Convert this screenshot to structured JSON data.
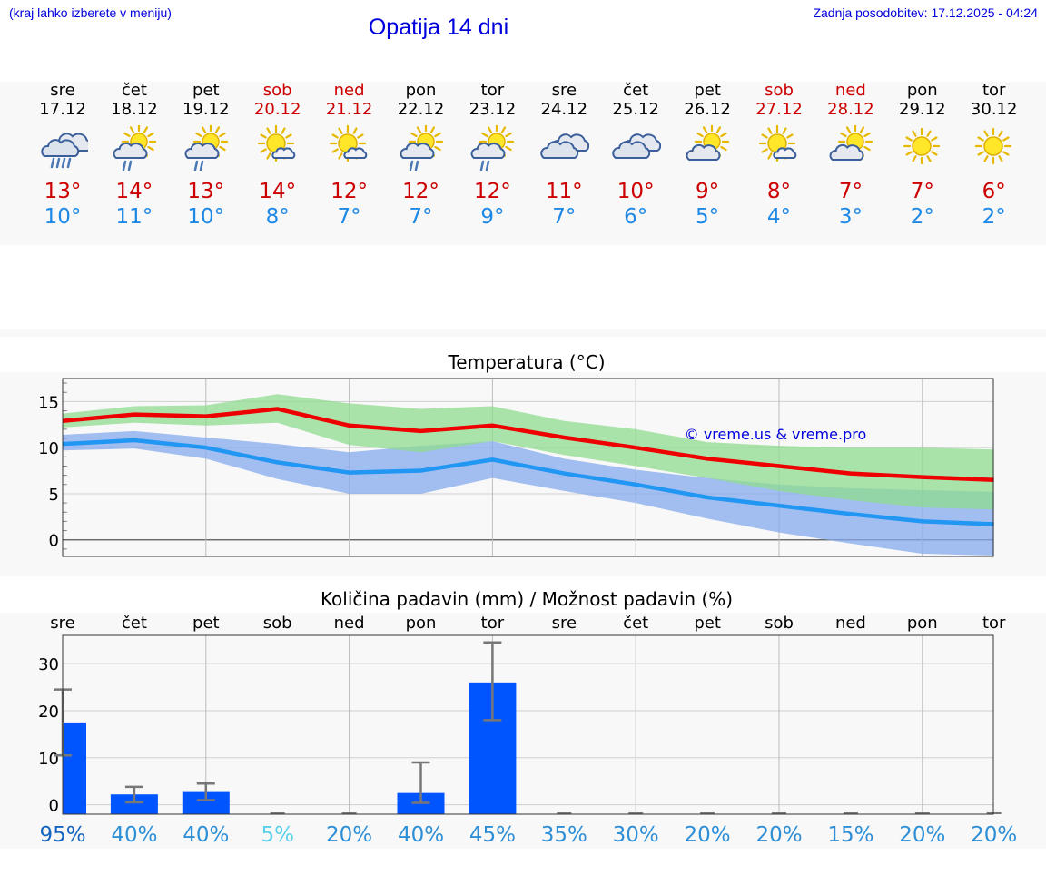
{
  "header": {
    "location_hint": "(kraj lahko izberete v meniju)",
    "title": "Opatija 14 dni",
    "updated": "Zadnja posodobitev: 17.12.2025 - 04:24"
  },
  "days": [
    {
      "name": "sre",
      "date": "17.12",
      "icon": "cloud-heavy-rain-icon",
      "max": "13°",
      "min": "10°",
      "weekend": false
    },
    {
      "name": "čet",
      "date": "18.12",
      "icon": "sun-cloud-rain-icon",
      "max": "14°",
      "min": "11°",
      "weekend": false
    },
    {
      "name": "pet",
      "date": "19.12",
      "icon": "sun-cloud-rain-icon",
      "max": "13°",
      "min": "10°",
      "weekend": false
    },
    {
      "name": "sob",
      "date": "20.12",
      "icon": "sun-small-cloud-icon",
      "max": "14°",
      "min": "8°",
      "weekend": true
    },
    {
      "name": "ned",
      "date": "21.12",
      "icon": "sun-small-cloud-icon",
      "max": "12°",
      "min": "7°",
      "weekend": true
    },
    {
      "name": "pon",
      "date": "22.12",
      "icon": "sun-cloud-rain-icon",
      "max": "12°",
      "min": "7°",
      "weekend": false
    },
    {
      "name": "tor",
      "date": "23.12",
      "icon": "sun-cloud-rain-icon",
      "max": "12°",
      "min": "9°",
      "weekend": false
    },
    {
      "name": "sre",
      "date": "24.12",
      "icon": "cloudy-icon",
      "max": "11°",
      "min": "7°",
      "weekend": false
    },
    {
      "name": "čet",
      "date": "25.12",
      "icon": "cloudy-icon",
      "max": "10°",
      "min": "6°",
      "weekend": false
    },
    {
      "name": "pet",
      "date": "26.12",
      "icon": "sun-cloud-icon",
      "max": "9°",
      "min": "5°",
      "weekend": false
    },
    {
      "name": "sob",
      "date": "27.12",
      "icon": "sun-small-cloud-icon",
      "max": "8°",
      "min": "4°",
      "weekend": true
    },
    {
      "name": "ned",
      "date": "28.12",
      "icon": "sun-cloud-icon",
      "max": "7°",
      "min": "3°",
      "weekend": true
    },
    {
      "name": "pon",
      "date": "29.12",
      "icon": "sun-icon",
      "max": "7°",
      "min": "2°",
      "weekend": false
    },
    {
      "name": "tor",
      "date": "30.12",
      "icon": "sun-icon",
      "max": "6°",
      "min": "2°",
      "weekend": false
    }
  ],
  "colors": {
    "max_line": "#ee0000",
    "min_line": "#2196f3",
    "max_band": "#8fdc8f",
    "min_band": "#86abee",
    "bar": "#0055ff",
    "error": "#777777"
  },
  "chart_data": [
    {
      "type": "line",
      "title": "Temperatura (°C)",
      "watermark": "© vreme.us & vreme.pro",
      "ylim": [
        -1.8,
        17.5
      ],
      "yticks": [
        0,
        5,
        10,
        15
      ],
      "series": [
        {
          "name": "max",
          "values": [
            12.9,
            13.6,
            13.4,
            14.2,
            12.4,
            11.8,
            12.4,
            11.1,
            10.0,
            8.8,
            8.0,
            7.2,
            6.8,
            6.5
          ],
          "band_low": [
            12.2,
            12.7,
            12.4,
            12.7,
            10.3,
            9.5,
            10.7,
            9.2,
            8.0,
            6.7,
            5.3,
            4.3,
            3.5,
            3.3
          ],
          "band_high": [
            13.7,
            14.5,
            14.6,
            15.8,
            14.8,
            14.2,
            14.5,
            12.9,
            12.0,
            10.6,
            10.2,
            10.0,
            10.0,
            9.8
          ]
        },
        {
          "name": "min",
          "values": [
            10.4,
            10.8,
            10.0,
            8.4,
            7.3,
            7.5,
            8.7,
            7.2,
            6.0,
            4.6,
            3.7,
            2.8,
            2.0,
            1.7
          ],
          "band_low": [
            9.7,
            9.9,
            8.8,
            6.6,
            5.0,
            5.0,
            6.7,
            5.3,
            4.0,
            2.3,
            0.8,
            -0.4,
            -1.5,
            -1.7
          ],
          "band_high": [
            11.4,
            11.8,
            11.1,
            10.4,
            9.5,
            10.2,
            10.7,
            8.8,
            7.6,
            6.7,
            6.0,
            5.6,
            5.4,
            5.2
          ]
        }
      ]
    },
    {
      "type": "bar",
      "title": "Količina padavin (mm) / Možnost padavin (%)",
      "ylim": [
        -2,
        36
      ],
      "yticks": [
        0,
        10,
        20,
        30
      ],
      "categories": [
        "sre",
        "čet",
        "pet",
        "sob",
        "ned",
        "pon",
        "tor",
        "sre",
        "čet",
        "pet",
        "sob",
        "ned",
        "pon",
        "tor"
      ],
      "values": [
        17.5,
        2.2,
        2.9,
        0,
        0,
        2.5,
        26.0,
        0,
        0,
        0,
        0,
        0,
        0,
        0
      ],
      "err_low": [
        10.5,
        0.5,
        1.0,
        0,
        0,
        0.4,
        18.0,
        0,
        0,
        0,
        0,
        0,
        0,
        0
      ],
      "err_high": [
        24.5,
        3.8,
        4.5,
        0.2,
        0.2,
        9.0,
        34.5,
        0.2,
        0.2,
        0.2,
        0.2,
        0.2,
        0.2,
        0.2
      ],
      "probabilities": [
        "95%",
        "40%",
        "40%",
        "5%",
        "20%",
        "40%",
        "45%",
        "35%",
        "30%",
        "20%",
        "20%",
        "15%",
        "20%",
        "20%"
      ],
      "probability_colors": [
        "#1565c0",
        "#2e8fd6",
        "#2e8fd6",
        "#5ad0ea",
        "#2e8fd6",
        "#2e8fd6",
        "#2e8fd6",
        "#2e8fd6",
        "#2e8fd6",
        "#2e8fd6",
        "#2e8fd6",
        "#2e8fd6",
        "#2e8fd6",
        "#2e8fd6"
      ]
    }
  ]
}
